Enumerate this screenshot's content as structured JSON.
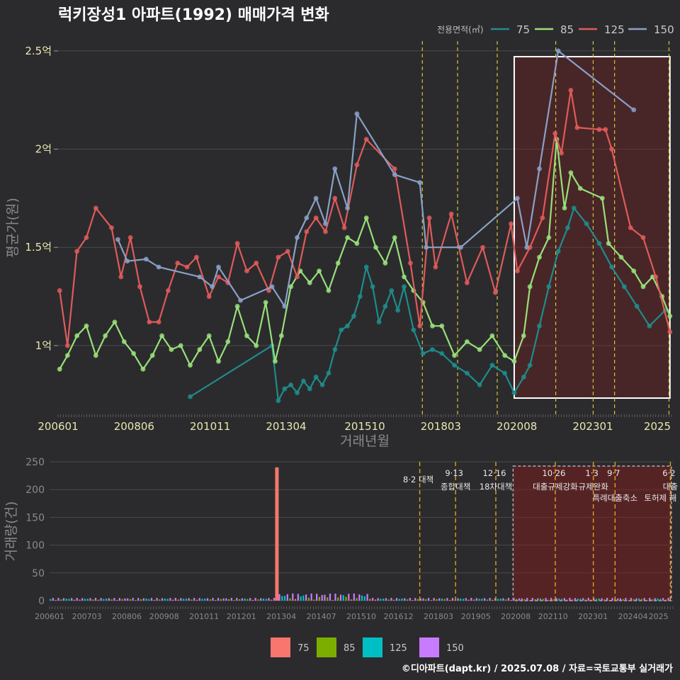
{
  "title": "럭키장성1 아파트(1992) 매매가격 변화",
  "legend_top": {
    "title": "전용면적(㎡)",
    "items": [
      {
        "label": "75",
        "color": "#1f8c8c"
      },
      {
        "label": "85",
        "color": "#98e07a"
      },
      {
        "label": "125",
        "color": "#e05a5a"
      },
      {
        "label": "150",
        "color": "#8aa0c8"
      }
    ]
  },
  "legend_bottom": {
    "items": [
      {
        "label": "75",
        "color": "#f8766d"
      },
      {
        "label": "85",
        "color": "#7cae00"
      },
      {
        "label": "125",
        "color": "#00bfc4"
      },
      {
        "label": "150",
        "color": "#c77cff"
      }
    ]
  },
  "footer": "©디아파트(dapt.kr) / 2025.07.08 / 자료=국토교통부 실거래가",
  "events": [
    {
      "date": 2017.58,
      "label1": "8·2 대책",
      "label2": ""
    },
    {
      "date": 2018.7,
      "label1": "9·13",
      "label2": "종합대책"
    },
    {
      "date": 2019.96,
      "label1": "12·16",
      "label2": "18차대책"
    },
    {
      "date": 2021.82,
      "label1": "10·26",
      "label2": "대출규제강화"
    },
    {
      "date": 2023.01,
      "label1": "1·3",
      "label2": "규제완화"
    },
    {
      "date": 2023.69,
      "label1": "9·7",
      "label2": "특례대출축소"
    },
    {
      "date": 2025.42,
      "label1": "6·2",
      "label2": "대출"
    }
  ],
  "extra_labels": {
    "toheo": "토허제 해"
  },
  "chart_data": [
    {
      "type": "line",
      "title": "럭키장성1 아파트(1992) 매매가격 변화",
      "xlabel": "거래년월",
      "ylabel": "평균가(원)",
      "x_ticks": [
        "200601",
        "200806",
        "201011",
        "201304",
        "201510",
        "201803",
        "202008",
        "202301",
        "2025"
      ],
      "y_ticks": [
        "1억",
        "1.5억",
        "2억",
        "2.5억"
      ],
      "ylim": [
        0.65,
        2.55
      ],
      "highlight_range": [
        2020.5,
        2025.45
      ],
      "series": [
        {
          "name": "75",
          "points": [
            [
              2010.2,
              0.74
            ],
            [
              2012.8,
              1.0
            ],
            [
              2013.0,
              0.72
            ],
            [
              2013.2,
              0.78
            ],
            [
              2013.4,
              0.8
            ],
            [
              2013.6,
              0.76
            ],
            [
              2013.8,
              0.82
            ],
            [
              2014.0,
              0.78
            ],
            [
              2014.2,
              0.84
            ],
            [
              2014.4,
              0.8
            ],
            [
              2014.6,
              0.86
            ],
            [
              2014.8,
              0.98
            ],
            [
              2015.0,
              1.08
            ],
            [
              2015.2,
              1.1
            ],
            [
              2015.4,
              1.15
            ],
            [
              2015.6,
              1.25
            ],
            [
              2015.8,
              1.4
            ],
            [
              2016.0,
              1.3
            ],
            [
              2016.2,
              1.12
            ],
            [
              2016.4,
              1.2
            ],
            [
              2016.6,
              1.28
            ],
            [
              2016.8,
              1.18
            ],
            [
              2017.0,
              1.3
            ],
            [
              2017.3,
              1.08
            ],
            [
              2017.6,
              0.96
            ],
            [
              2017.9,
              0.98
            ],
            [
              2018.2,
              0.96
            ],
            [
              2018.6,
              0.9
            ],
            [
              2019.0,
              0.86
            ],
            [
              2019.4,
              0.8
            ],
            [
              2019.8,
              0.9
            ],
            [
              2020.2,
              0.86
            ],
            [
              2020.5,
              0.76
            ],
            [
              2020.8,
              0.84
            ],
            [
              2021.0,
              0.9
            ],
            [
              2021.3,
              1.1
            ],
            [
              2021.6,
              1.3
            ],
            [
              2021.9,
              1.48
            ],
            [
              2022.2,
              1.6
            ],
            [
              2022.4,
              1.7
            ],
            [
              2022.8,
              1.62
            ],
            [
              2023.2,
              1.52
            ],
            [
              2023.6,
              1.4
            ],
            [
              2024.0,
              1.3
            ],
            [
              2024.4,
              1.2
            ],
            [
              2024.8,
              1.1
            ],
            [
              2025.3,
              1.18
            ]
          ]
        },
        {
          "name": "85",
          "points": [
            [
              2006.05,
              0.88
            ],
            [
              2006.3,
              0.95
            ],
            [
              2006.6,
              1.05
            ],
            [
              2006.9,
              1.1
            ],
            [
              2007.2,
              0.95
            ],
            [
              2007.5,
              1.05
            ],
            [
              2007.8,
              1.12
            ],
            [
              2008.1,
              1.02
            ],
            [
              2008.4,
              0.96
            ],
            [
              2008.7,
              0.88
            ],
            [
              2009.0,
              0.95
            ],
            [
              2009.3,
              1.05
            ],
            [
              2009.6,
              0.98
            ],
            [
              2009.9,
              1.0
            ],
            [
              2010.2,
              0.9
            ],
            [
              2010.5,
              0.98
            ],
            [
              2010.8,
              1.05
            ],
            [
              2011.1,
              0.92
            ],
            [
              2011.4,
              1.02
            ],
            [
              2011.7,
              1.2
            ],
            [
              2012.0,
              1.05
            ],
            [
              2012.3,
              1.0
            ],
            [
              2012.6,
              1.22
            ],
            [
              2012.9,
              0.92
            ],
            [
              2013.1,
              1.05
            ],
            [
              2013.4,
              1.3
            ],
            [
              2013.7,
              1.38
            ],
            [
              2014.0,
              1.32
            ],
            [
              2014.3,
              1.38
            ],
            [
              2014.6,
              1.28
            ],
            [
              2014.9,
              1.42
            ],
            [
              2015.2,
              1.55
            ],
            [
              2015.5,
              1.52
            ],
            [
              2015.8,
              1.65
            ],
            [
              2016.1,
              1.5
            ],
            [
              2016.4,
              1.42
            ],
            [
              2016.7,
              1.55
            ],
            [
              2017.0,
              1.35
            ],
            [
              2017.3,
              1.28
            ],
            [
              2017.6,
              1.22
            ],
            [
              2017.9,
              1.1
            ],
            [
              2018.2,
              1.1
            ],
            [
              2018.6,
              0.95
            ],
            [
              2019.0,
              1.02
            ],
            [
              2019.4,
              0.98
            ],
            [
              2019.8,
              1.05
            ],
            [
              2020.2,
              0.95
            ],
            [
              2020.5,
              0.92
            ],
            [
              2020.8,
              1.05
            ],
            [
              2021.0,
              1.3
            ],
            [
              2021.3,
              1.45
            ],
            [
              2021.6,
              1.55
            ],
            [
              2021.85,
              2.05
            ],
            [
              2022.1,
              1.7
            ],
            [
              2022.3,
              1.88
            ],
            [
              2022.6,
              1.8
            ],
            [
              2023.3,
              1.75
            ],
            [
              2023.5,
              1.52
            ],
            [
              2023.9,
              1.45
            ],
            [
              2024.3,
              1.38
            ],
            [
              2024.6,
              1.3
            ],
            [
              2024.9,
              1.35
            ],
            [
              2025.2,
              1.25
            ],
            [
              2025.45,
              1.15
            ]
          ]
        },
        {
          "name": "125",
          "points": [
            [
              2006.05,
              1.28
            ],
            [
              2006.3,
              1.0
            ],
            [
              2006.6,
              1.48
            ],
            [
              2006.9,
              1.55
            ],
            [
              2007.2,
              1.7
            ],
            [
              2007.7,
              1.6
            ],
            [
              2008.0,
              1.35
            ],
            [
              2008.3,
              1.55
            ],
            [
              2008.6,
              1.3
            ],
            [
              2008.9,
              1.12
            ],
            [
              2009.2,
              1.12
            ],
            [
              2009.5,
              1.28
            ],
            [
              2009.8,
              1.42
            ],
            [
              2010.1,
              1.4
            ],
            [
              2010.4,
              1.45
            ],
            [
              2010.8,
              1.25
            ],
            [
              2011.1,
              1.35
            ],
            [
              2011.4,
              1.32
            ],
            [
              2011.7,
              1.52
            ],
            [
              2012.0,
              1.38
            ],
            [
              2012.3,
              1.42
            ],
            [
              2012.7,
              1.28
            ],
            [
              2013.0,
              1.45
            ],
            [
              2013.3,
              1.48
            ],
            [
              2013.6,
              1.35
            ],
            [
              2013.9,
              1.58
            ],
            [
              2014.2,
              1.65
            ],
            [
              2014.5,
              1.58
            ],
            [
              2014.8,
              1.75
            ],
            [
              2015.1,
              1.6
            ],
            [
              2015.5,
              1.92
            ],
            [
              2015.8,
              2.05
            ],
            [
              2016.7,
              1.9
            ],
            [
              2017.2,
              1.42
            ],
            [
              2017.5,
              1.1
            ],
            [
              2017.8,
              1.65
            ],
            [
              2018.0,
              1.4
            ],
            [
              2018.5,
              1.67
            ],
            [
              2019.0,
              1.32
            ],
            [
              2019.5,
              1.5
            ],
            [
              2019.9,
              1.27
            ],
            [
              2020.4,
              1.62
            ],
            [
              2020.6,
              1.38
            ],
            [
              2021.0,
              1.5
            ],
            [
              2021.4,
              1.65
            ],
            [
              2021.8,
              2.08
            ],
            [
              2022.0,
              1.98
            ],
            [
              2022.3,
              2.3
            ],
            [
              2022.5,
              2.11
            ],
            [
              2023.2,
              2.1
            ],
            [
              2023.4,
              2.1
            ],
            [
              2023.6,
              2.0
            ],
            [
              2024.2,
              1.6
            ],
            [
              2024.6,
              1.55
            ],
            [
              2025.0,
              1.35
            ],
            [
              2025.45,
              1.07
            ]
          ]
        },
        {
          "name": "150",
          "points": [
            [
              2007.9,
              1.54
            ],
            [
              2008.2,
              1.43
            ],
            [
              2008.8,
              1.44
            ],
            [
              2009.2,
              1.4
            ],
            [
              2010.5,
              1.35
            ],
            [
              2010.9,
              1.3
            ],
            [
              2011.1,
              1.4
            ],
            [
              2011.8,
              1.23
            ],
            [
              2012.8,
              1.3
            ],
            [
              2013.2,
              1.2
            ],
            [
              2013.6,
              1.55
            ],
            [
              2013.9,
              1.65
            ],
            [
              2014.2,
              1.75
            ],
            [
              2014.5,
              1.62
            ],
            [
              2014.8,
              1.9
            ],
            [
              2015.2,
              1.7
            ],
            [
              2015.5,
              2.18
            ],
            [
              2016.7,
              1.87
            ],
            [
              2017.5,
              1.83
            ],
            [
              2017.7,
              1.5
            ],
            [
              2018.8,
              1.5
            ],
            [
              2020.6,
              1.75
            ],
            [
              2020.9,
              1.5
            ],
            [
              2021.3,
              1.9
            ],
            [
              2021.9,
              2.5
            ],
            [
              2024.3,
              2.2
            ]
          ]
        }
      ]
    },
    {
      "type": "bar",
      "xlabel": "",
      "ylabel": "거래량(건)",
      "x_ticks": [
        "200601",
        "200703",
        "200806",
        "200908",
        "201011",
        "201201",
        "201304",
        "201407",
        "201510",
        "201612",
        "201803",
        "201905",
        "202008",
        "202110",
        "202301",
        "202404",
        "2025"
      ],
      "y_ticks": [
        "0",
        "50",
        "100",
        "150",
        "200",
        "250"
      ],
      "ylim": [
        0,
        250
      ],
      "spike": {
        "date": 2013.1,
        "value": 240
      },
      "highlight_range": [
        2020.5,
        2025.45
      ]
    }
  ]
}
